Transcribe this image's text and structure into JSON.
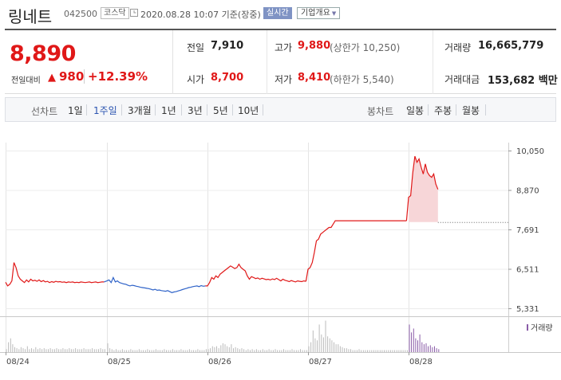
{
  "header": {
    "stock_name": "링네트",
    "stock_code": "042500",
    "market": "코스닥",
    "clock_icon": "clock-icon",
    "datetime": "2020.08.28 10:07 기준(장중)",
    "realtime_badge": "실시간",
    "company_button": "기업개요",
    "company_caret": "▼"
  },
  "quote": {
    "price": "8,890",
    "change_label": "전일대비",
    "change_icon": "▲",
    "change_value": "980",
    "change_pct": "+12.39%",
    "rows": {
      "prev_close_label": "전일",
      "prev_close": "7,910",
      "open_label": "시가",
      "open": "8,700",
      "high_label": "고가",
      "high": "9,880",
      "upper_limit": "(상한가 10,250)",
      "low_label": "저가",
      "low": "8,410",
      "lower_limit": "(하한가 5,540)",
      "volume_label": "거래량",
      "volume": "16,665,779",
      "amount_label": "거래대금",
      "amount": "153,682 백만"
    }
  },
  "toolbar": {
    "line_label": "선차트",
    "line_periods": [
      "1일",
      "1주일",
      "3개월",
      "1년",
      "3년",
      "5년",
      "10년"
    ],
    "active_period": "1주일",
    "candle_label": "봉차트",
    "candle_periods": [
      "일봉",
      "주봉",
      "월봉"
    ]
  },
  "chart_data": {
    "type": "line",
    "y_ticks": [
      "10,050",
      "8,870",
      "7,691",
      "6,511",
      "5,331"
    ],
    "ylim": [
      5331,
      10050
    ],
    "x_labels": [
      "08/24",
      "08/25",
      "08/26",
      "08/27",
      "08/28"
    ],
    "prev_close": 7910,
    "volume_legend": "거래량",
    "grid": true,
    "colors": {
      "up": "#e01818",
      "down": "#2f63c8",
      "volume": "#bbbbbb",
      "volume_today": "#8a5ca8",
      "fill": "#f7d6d8"
    },
    "series": [
      {
        "day": "08/24",
        "color": "up",
        "values": [
          6110,
          6000,
          6050,
          6150,
          6700,
          6550,
          6300,
          6200,
          6150,
          6100,
          6180,
          6120,
          6200,
          6150,
          6170,
          6140,
          6180,
          6130,
          6160,
          6120,
          6140,
          6100,
          6130,
          6110,
          6140,
          6120,
          6130,
          6110,
          6120,
          6100,
          6120,
          6110,
          6120,
          6100,
          6110,
          6100,
          6120,
          6110,
          6100,
          6110,
          6120,
          6100,
          6110,
          6120,
          6100,
          6110,
          6120,
          6120
        ]
      },
      {
        "day": "08/25",
        "color": "down",
        "values": [
          6150,
          6180,
          6100,
          6250,
          6120,
          6150,
          6100,
          6080,
          6060,
          6050,
          6020,
          6000,
          6020,
          6010,
          5990,
          5980,
          5960,
          5950,
          5940,
          5930,
          5920,
          5900,
          5880,
          5900,
          5870,
          5880,
          5860,
          5850,
          5840,
          5860,
          5830,
          5800,
          5820,
          5830,
          5850,
          5870,
          5890,
          5910,
          5930,
          5950,
          5960,
          5980,
          5990,
          6000,
          5980,
          6010,
          5990,
          6000
        ]
      },
      {
        "day": "08/26",
        "color": "up",
        "values": [
          6000,
          6100,
          6250,
          6200,
          6300,
          6250,
          6350,
          6400,
          6450,
          6500,
          6550,
          6600,
          6560,
          6520,
          6550,
          6650,
          6550,
          6500,
          6450,
          6300,
          6200,
          6280,
          6250,
          6220,
          6240,
          6200,
          6230,
          6210,
          6190,
          6200,
          6180,
          6210,
          6190,
          6230,
          6190,
          6150,
          6200,
          6170,
          6150,
          6130,
          6160,
          6140,
          6120,
          6150,
          6140,
          6130,
          6150,
          6140
        ]
      },
      {
        "day": "08/27",
        "color": "up",
        "values": [
          6500,
          6550,
          6700,
          7000,
          7350,
          7400,
          7550,
          7600,
          7650,
          7700,
          7750,
          7750,
          7850,
          7950,
          7950,
          7950,
          7950,
          7950,
          7950,
          7950,
          7950,
          7950,
          7950,
          7950,
          7950,
          7950,
          7950,
          7950,
          7950,
          7950,
          7950,
          7950,
          7950,
          7950,
          7950,
          7950,
          7950,
          7950,
          7950,
          7950,
          7950,
          7950,
          7950,
          7950,
          7950,
          7950,
          7950,
          7950
        ]
      },
      {
        "day": "08/28",
        "color": "up",
        "values": [
          8650,
          8700,
          9400,
          9880,
          9700,
          9800,
          9550,
          9350,
          9650,
          9400,
          9300,
          9250,
          9350,
          9050,
          8890
        ]
      }
    ],
    "volume_days": [
      {
        "day": "08/24",
        "values": [
          3,
          10,
          14,
          8,
          5,
          4,
          3,
          5,
          4,
          3,
          6,
          3,
          4,
          3,
          5,
          3,
          4,
          3,
          4,
          3,
          3,
          4,
          3,
          3,
          4,
          3,
          3,
          4,
          3,
          3,
          4,
          3,
          3,
          4,
          3,
          3,
          3,
          4,
          3,
          3,
          3,
          4,
          3,
          3,
          3,
          4,
          3,
          3
        ]
      },
      {
        "day": "08/25",
        "values": [
          9,
          4,
          3,
          2,
          3,
          2,
          2,
          3,
          2,
          2,
          2,
          3,
          2,
          2,
          2,
          3,
          2,
          2,
          2,
          3,
          2,
          2,
          2,
          3,
          2,
          2,
          2,
          3,
          2,
          2,
          2,
          3,
          2,
          2,
          2,
          3,
          2,
          2,
          2,
          3,
          2,
          2,
          2,
          3,
          2,
          2,
          2,
          3
        ]
      },
      {
        "day": "08/26",
        "values": [
          3,
          4,
          6,
          5,
          6,
          4,
          7,
          9,
          8,
          6,
          5,
          8,
          4,
          5,
          4,
          3,
          4,
          3,
          2,
          3,
          2,
          3,
          2,
          3,
          2,
          2,
          3,
          2,
          2,
          3,
          2,
          2,
          3,
          2,
          2,
          2,
          3,
          2,
          2,
          2,
          3,
          2,
          2,
          2,
          3,
          2,
          2,
          2
        ]
      },
      {
        "day": "08/27",
        "values": [
          6,
          10,
          22,
          14,
          12,
          28,
          18,
          15,
          32,
          16,
          14,
          12,
          10,
          8,
          8,
          6,
          5,
          4,
          4,
          3,
          3,
          2,
          2,
          2,
          3,
          2,
          2,
          2,
          2,
          2,
          2,
          2,
          2,
          2,
          2,
          2,
          2,
          2,
          2,
          2,
          2,
          2,
          2,
          2,
          2,
          2,
          2,
          2
        ]
      },
      {
        "day": "08/28",
        "values": [
          28,
          20,
          24,
          14,
          12,
          18,
          10,
          8,
          9,
          6,
          7,
          5,
          6,
          4,
          3
        ],
        "today": true
      }
    ]
  }
}
